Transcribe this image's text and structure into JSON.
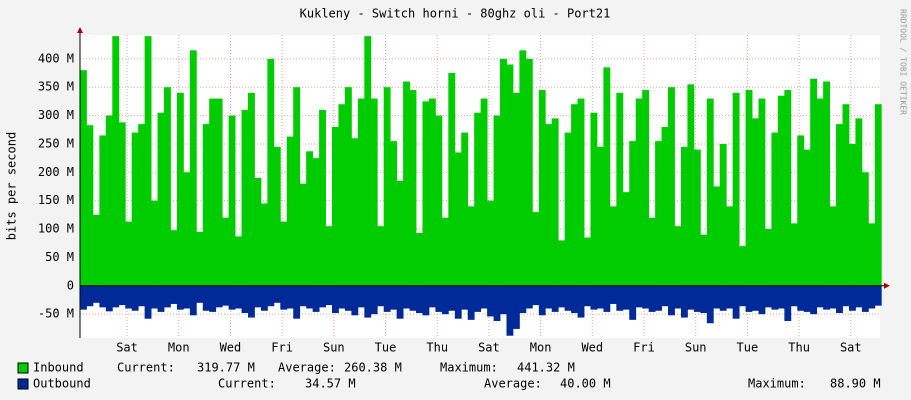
{
  "chart_data": {
    "type": "area",
    "title": "Kukleny - Switch horni - 80ghz oli - Port21",
    "y_label": "bits per second",
    "side_text": "RRDTOOL / TOBI OETIKER",
    "xlim": [
      0,
      30.95
    ],
    "ylim": [
      -92,
      442
    ],
    "xticks": [
      {
        "value": 1.82,
        "label": "Sat"
      },
      {
        "value": 3.82,
        "label": "Mon"
      },
      {
        "value": 5.82,
        "label": "Wed"
      },
      {
        "value": 7.82,
        "label": "Fri"
      },
      {
        "value": 9.82,
        "label": "Sun"
      },
      {
        "value": 11.82,
        "label": "Tue"
      },
      {
        "value": 13.82,
        "label": "Thu"
      },
      {
        "value": 15.82,
        "label": "Sat"
      },
      {
        "value": 17.82,
        "label": "Mon"
      },
      {
        "value": 19.82,
        "label": "Wed"
      },
      {
        "value": 21.82,
        "label": "Fri"
      },
      {
        "value": 23.82,
        "label": "Sun"
      },
      {
        "value": 25.82,
        "label": "Tue"
      },
      {
        "value": 27.82,
        "label": "Thu"
      },
      {
        "value": 29.82,
        "label": "Sat"
      }
    ],
    "yticks": [
      {
        "value": -50,
        "label": "-50 M"
      },
      0,
      {
        "value": 50,
        "label": "50 M"
      },
      {
        "value": 100,
        "label": "100 M"
      },
      {
        "value": 150,
        "label": "150 M"
      },
      {
        "value": 200,
        "label": "200 M"
      },
      {
        "value": 250,
        "label": "250 M"
      },
      {
        "value": 300,
        "label": "300 M"
      },
      {
        "value": 350,
        "label": "350 M"
      },
      {
        "value": 400,
        "label": "400 M"
      }
    ],
    "grid": true,
    "x": [
      0,
      0.25,
      0.5,
      0.75,
      1,
      1.25,
      1.5,
      1.75,
      2,
      2.25,
      2.5,
      2.75,
      3,
      3.25,
      3.5,
      3.75,
      4,
      4.25,
      4.5,
      4.75,
      5,
      5.25,
      5.5,
      5.75,
      6,
      6.25,
      6.5,
      6.75,
      7,
      7.25,
      7.5,
      7.75,
      8,
      8.25,
      8.5,
      8.75,
      9,
      9.25,
      9.5,
      9.75,
      10,
      10.25,
      10.5,
      10.75,
      11,
      11.25,
      11.5,
      11.75,
      12,
      12.25,
      12.5,
      12.75,
      13,
      13.25,
      13.5,
      13.75,
      14,
      14.25,
      14.5,
      14.75,
      15,
      15.25,
      15.5,
      15.75,
      16,
      16.25,
      16.5,
      16.75,
      17,
      17.25,
      17.5,
      17.75,
      18,
      18.25,
      18.5,
      18.75,
      19,
      19.25,
      19.5,
      19.75,
      20,
      20.25,
      20.5,
      20.75,
      21,
      21.25,
      21.5,
      21.75,
      22,
      22.25,
      22.5,
      22.75,
      23,
      23.25,
      23.5,
      23.75,
      24,
      24.25,
      24.5,
      24.75,
      25,
      25.25,
      25.5,
      25.75,
      26,
      26.25,
      26.5,
      26.75,
      27,
      27.25,
      27.5,
      27.75,
      28,
      28.25,
      28.5,
      28.75,
      29,
      29.25,
      29.5,
      29.75,
      30,
      30.25,
      30.5,
      30.75
    ],
    "series": [
      {
        "name": "Inbound",
        "color": "#00cc00",
        "stats": [
          {
            "label": "Current:",
            "value": "319.77 M"
          },
          {
            "label": "Average:",
            "value": "260.38 M"
          },
          {
            "label": "Maximum:",
            "value": "441.32 M"
          }
        ],
        "values": [
          380,
          283,
          125,
          265,
          300,
          440,
          288,
          113,
          270,
          285,
          440,
          150,
          305,
          350,
          98,
          340,
          200,
          415,
          95,
          285,
          330,
          330,
          120,
          300,
          87,
          310,
          340,
          190,
          145,
          400,
          245,
          113,
          263,
          350,
          180,
          237,
          225,
          310,
          105,
          280,
          320,
          350,
          260,
          330,
          440,
          330,
          105,
          350,
          255,
          185,
          360,
          345,
          93,
          325,
          330,
          300,
          120,
          375,
          235,
          270,
          140,
          305,
          330,
          150,
          300,
          400,
          390,
          340,
          415,
          400,
          130,
          345,
          285,
          295,
          80,
          270,
          320,
          330,
          85,
          305,
          245,
          385,
          140,
          340,
          165,
          255,
          330,
          345,
          120,
          255,
          280,
          350,
          105,
          245,
          355,
          240,
          90,
          330,
          175,
          250,
          140,
          340,
          70,
          345,
          295,
          330,
          100,
          270,
          335,
          345,
          110,
          265,
          240,
          365,
          330,
          360,
          140,
          285,
          320,
          250,
          295,
          200,
          110,
          320
        ]
      },
      {
        "name": "Outbound",
        "color": "#002a97",
        "stats": [
          {
            "label": "Current:",
            "value": "34.57 M"
          },
          {
            "label": "Average:",
            "value": "40.00 M"
          },
          {
            "label": "Maximum:",
            "value": "88.90 M"
          }
        ],
        "values": [
          -42,
          -36,
          -30,
          -38,
          -45,
          -38,
          -34,
          -40,
          -44,
          -36,
          -58,
          -40,
          -46,
          -38,
          -32,
          -42,
          -40,
          -52,
          -30,
          -44,
          -46,
          -38,
          -35,
          -42,
          -40,
          -48,
          -56,
          -38,
          -44,
          -36,
          -30,
          -42,
          -40,
          -58,
          -36,
          -40,
          -46,
          -38,
          -34,
          -48,
          -40,
          -44,
          -52,
          -38,
          -56,
          -50,
          -36,
          -46,
          -42,
          -58,
          -40,
          -44,
          -48,
          -52,
          -38,
          -46,
          -50,
          -44,
          -58,
          -42,
          -60,
          -46,
          -40,
          -54,
          -62,
          -50,
          -88,
          -76,
          -48,
          -40,
          -34,
          -52,
          -40,
          -46,
          -38,
          -44,
          -48,
          -56,
          -36,
          -42,
          -40,
          -46,
          -32,
          -44,
          -42,
          -60,
          -38,
          -40,
          -46,
          -44,
          -36,
          -52,
          -40,
          -56,
          -42,
          -46,
          -48,
          -66,
          -40,
          -44,
          -40,
          -58,
          -36,
          -46,
          -44,
          -50,
          -38,
          -42,
          -40,
          -62,
          -36,
          -44,
          -46,
          -50,
          -38,
          -42,
          -40,
          -48,
          -36,
          -44,
          -38,
          -46,
          -40,
          -35
        ]
      }
    ]
  }
}
